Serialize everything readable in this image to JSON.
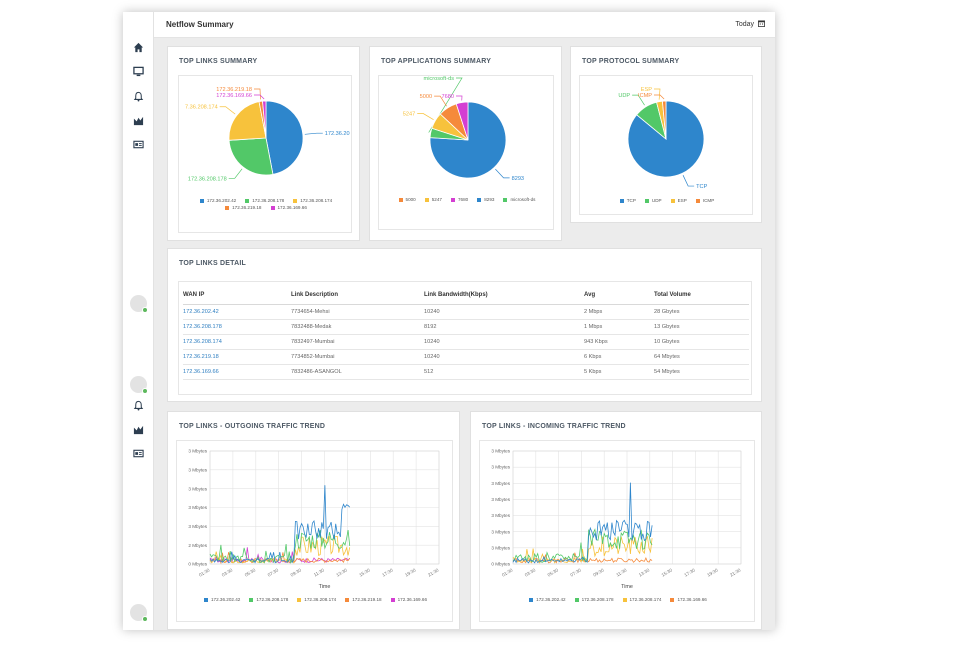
{
  "header": {
    "title": "Netflow Summary",
    "date_range": "Today"
  },
  "sidebar": {
    "icons": [
      "home-icon",
      "monitor-icon",
      "bell-icon",
      "area-chart-icon",
      "id-card-icon"
    ]
  },
  "colors": {
    "blue": "#2e86cc",
    "green": "#52c868",
    "yellow": "#f7c23c",
    "orange": "#f58a3b",
    "magenta": "#d43fd2",
    "link": "#2f7fc1"
  },
  "top_links_summary": {
    "title": "TOP LINKS SUMMARY",
    "chart_data": {
      "type": "pie",
      "labels": [
        "172.36.202.42",
        "172.36.208.178",
        "172.36.208.174",
        "172.36.219.18",
        "172.36.169.66"
      ],
      "values": [
        47,
        27,
        23,
        1.5,
        1.5
      ],
      "colors": [
        "#2e86cc",
        "#52c868",
        "#f7c23c",
        "#f58a3b",
        "#d43fd2"
      ],
      "callouts": [
        "172.36.20",
        "172.36.208.178",
        "7.36.208.174",
        "172.36.219.18",
        "172.36.169.66"
      ],
      "legend": [
        "172.36.202.42",
        "172.36.208.178",
        "172.36.208.174",
        "172.36.219.18",
        "172.36.169.66"
      ]
    }
  },
  "top_apps_summary": {
    "title": "TOP APPLICATIONS SUMMARY",
    "chart_data": {
      "type": "pie",
      "labels": [
        "8293",
        "microsoft-ds",
        "5247",
        "5000",
        "7680"
      ],
      "values": [
        76,
        4,
        7,
        8,
        5
      ],
      "colors": [
        "#2e86cc",
        "#52c868",
        "#f7c23c",
        "#f58a3b",
        "#d43fd2"
      ],
      "callouts": [
        "8293",
        "microsoft-ds",
        "5247",
        "5000",
        "7680"
      ],
      "legend": [
        "5000",
        "5247",
        "7680",
        "8293",
        "microsoft-ds"
      ],
      "legend_colors": [
        "#f58a3b",
        "#f7c23c",
        "#d43fd2",
        "#2e86cc",
        "#52c868"
      ]
    }
  },
  "top_protocol_summary": {
    "title": "TOP PROTOCOL SUMMARY",
    "chart_data": {
      "type": "pie",
      "labels": [
        "TCP",
        "UDP",
        "ESP",
        "ICMP"
      ],
      "values": [
        86,
        10,
        2.5,
        1.5
      ],
      "colors": [
        "#2e86cc",
        "#52c868",
        "#f7c23c",
        "#f58a3b"
      ],
      "callouts": [
        "TCP",
        "UDP",
        "ESP",
        "ICMP"
      ],
      "legend": [
        "TCP",
        "UDP",
        "ESP",
        "ICMP"
      ]
    }
  },
  "top_links_detail": {
    "title": "TOP LINKS DETAIL",
    "columns": [
      "WAN IP",
      "Link Description",
      "Link Bandwidth(Kbps)",
      "Avg",
      "Total Volume"
    ],
    "rows": [
      [
        "172.36.202.42",
        "7734654-Mehsi",
        "10240",
        "2 Mbps",
        "28 Gbytes"
      ],
      [
        "172.36.208.178",
        "7832488-Medak",
        "8192",
        "1 Mbps",
        "13 Gbytes"
      ],
      [
        "172.36.208.174",
        "7832497-Mumbai",
        "10240",
        "943 Kbps",
        "10 Gbytes"
      ],
      [
        "172.36.219.18",
        "7734852-Mumbai",
        "10240",
        "6 Kbps",
        "64 Mbytes"
      ],
      [
        "172.36.169.66",
        "7832486-ASANGOL",
        "512",
        "5 Kbps",
        "54 Mbytes"
      ]
    ]
  },
  "outgoing_trend": {
    "title": "TOP LINKS - OUTGOING TRAFFIC TREND",
    "chart_data": {
      "type": "line",
      "xlabel": "Time",
      "x_ticks": [
        "01:30",
        "03:30",
        "05:30",
        "07:30",
        "09:30",
        "11:30",
        "13:30",
        "15:30",
        "17:30",
        "19:30",
        "21:30"
      ],
      "y_ticks": [
        "0 Mbytes",
        "2 Mbytes",
        "3 Mbytes",
        "3 Mbytes",
        "3 Mbytes",
        "3 Mbytes",
        "3 Mbytes"
      ],
      "legend": [
        "172.36.202.42",
        "172.36.208.178",
        "172.36.208.174",
        "172.36.219.18",
        "172.36.169.66"
      ],
      "colors": [
        "#2e86cc",
        "#52c868",
        "#f7c23c",
        "#f58a3b",
        "#d43fd2"
      ]
    }
  },
  "incoming_trend": {
    "title": "TOP LINKS - INCOMING TRAFFIC TREND",
    "chart_data": {
      "type": "line",
      "xlabel": "Time",
      "x_ticks": [
        "01:30",
        "03:30",
        "05:30",
        "07:30",
        "09:30",
        "11:30",
        "13:30",
        "15:30",
        "17:30",
        "19:30",
        "21:30"
      ],
      "y_ticks": [
        "0 Mbytes",
        "3 Mbytes",
        "3 Mbytes",
        "3 Mbytes",
        "3 Mbytes",
        "3 Mbytes",
        "3 Mbytes",
        "3 Mbytes"
      ],
      "legend": [
        "172.36.202.42",
        "172.36.208.178",
        "172.36.208.174",
        "172.36.169.66"
      ],
      "colors": [
        "#2e86cc",
        "#52c868",
        "#f7c23c",
        "#f58a3b"
      ]
    }
  }
}
